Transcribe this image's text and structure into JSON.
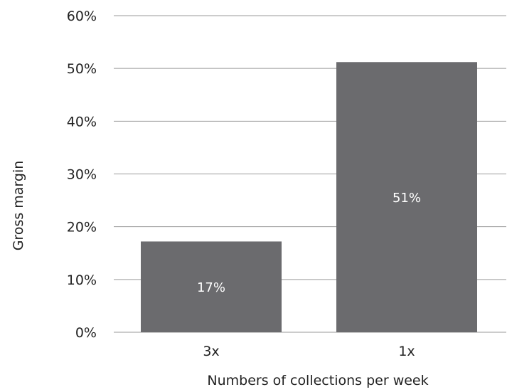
{
  "chart_data": {
    "type": "bar",
    "categories": [
      "3x",
      "1x"
    ],
    "values": [
      17.2,
      51.2
    ],
    "data_labels": [
      "17%",
      "51%"
    ],
    "title": "",
    "xlabel": "Numbers of collections per week",
    "ylabel": "Gross margin",
    "ylim": [
      0,
      60
    ],
    "y_ticks": [
      0,
      10,
      20,
      30,
      40,
      50,
      60
    ],
    "y_tick_labels": [
      "0%",
      "10%",
      "20%",
      "30%",
      "40%",
      "50%",
      "60%"
    ],
    "grid": true,
    "legend": "none",
    "colors": {
      "bar": "#6b6b6e",
      "grid": "#9a9a9a",
      "text": "#222222",
      "data_label": "#ffffff"
    }
  }
}
